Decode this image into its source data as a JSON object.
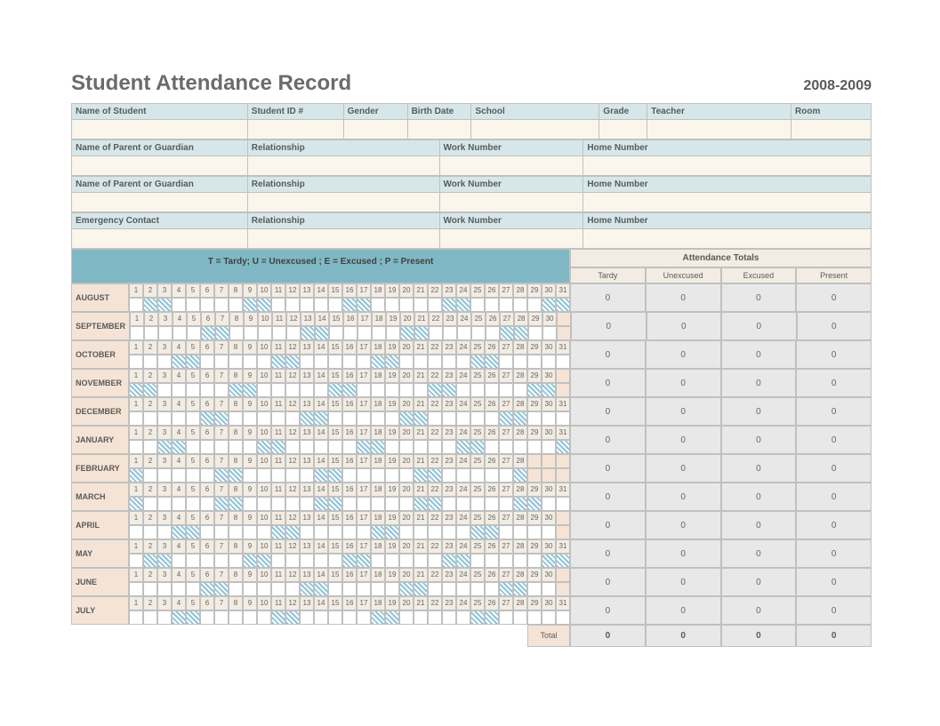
{
  "title": "Student Attendance Record",
  "year": "2008-2009",
  "colors": {
    "header_bg": "#d6e7ea",
    "value_bg": "#faf6ec",
    "legend_bg": "#7fb8c4",
    "month_bg": "#f5e4d6",
    "totals_bg": "#e8e8e8",
    "subheader_bg": "#f2ece2",
    "border": "#c0c0c0",
    "weekend_stripe": "#8fc4d9"
  },
  "info_sections": [
    {
      "headers": [
        "Name of Student",
        "Student ID #",
        "Gender",
        "Birth Date",
        "School",
        "Grade",
        "Teacher",
        "Room"
      ],
      "widths": [
        22,
        12,
        8,
        8,
        16,
        6,
        18,
        10
      ],
      "values": [
        "",
        "",
        "",
        "",
        "",
        "",
        "",
        ""
      ]
    },
    {
      "headers": [
        "Name of Parent or Guardian",
        "Relationship",
        "Work Number",
        "Home Number"
      ],
      "widths": [
        22,
        24,
        18,
        36
      ],
      "values": [
        "",
        "",
        "",
        ""
      ]
    },
    {
      "headers": [
        "Name of Parent or Guardian",
        "Relationship",
        "Work Number",
        "Home Number"
      ],
      "widths": [
        22,
        24,
        18,
        36
      ],
      "values": [
        "",
        "",
        "",
        ""
      ]
    },
    {
      "headers": [
        "Emergency Contact",
        "Relationship",
        "Work Number",
        "Home Number"
      ],
      "widths": [
        22,
        24,
        18,
        36
      ],
      "values": [
        "",
        "",
        "",
        ""
      ]
    }
  ],
  "legend": "T = Tardy; U = Unexcused ; E = Excused ; P = Present",
  "totals_header": "Attendance Totals",
  "totals_columns": [
    "Tardy",
    "Unexcused",
    "Excused",
    "Present"
  ],
  "months": [
    {
      "name": "AUGUST",
      "days": 31,
      "weekends": [
        2,
        3,
        9,
        10,
        16,
        17,
        23,
        24,
        30,
        31
      ],
      "totals": [
        0,
        0,
        0,
        0
      ]
    },
    {
      "name": "SEPTEMBER",
      "days": 30,
      "weekends": [
        6,
        7,
        13,
        14,
        20,
        21,
        27,
        28
      ],
      "totals": [
        0,
        0,
        0,
        0
      ]
    },
    {
      "name": "OCTOBER",
      "days": 31,
      "weekends": [
        4,
        5,
        11,
        12,
        18,
        19,
        25,
        26
      ],
      "totals": [
        0,
        0,
        0,
        0
      ]
    },
    {
      "name": "NOVEMBER",
      "days": 30,
      "weekends": [
        1,
        2,
        8,
        9,
        15,
        16,
        22,
        23,
        29,
        30
      ],
      "totals": [
        0,
        0,
        0,
        0
      ]
    },
    {
      "name": "DECEMBER",
      "days": 31,
      "weekends": [
        6,
        7,
        13,
        14,
        20,
        21,
        27,
        28
      ],
      "totals": [
        0,
        0,
        0,
        0
      ]
    },
    {
      "name": "JANUARY",
      "days": 31,
      "weekends": [
        3,
        4,
        10,
        11,
        17,
        18,
        24,
        25,
        31
      ],
      "totals": [
        0,
        0,
        0,
        0
      ]
    },
    {
      "name": "FEBRUARY",
      "days": 28,
      "weekends": [
        1,
        7,
        8,
        14,
        15,
        21,
        22,
        28
      ],
      "totals": [
        0,
        0,
        0,
        0
      ]
    },
    {
      "name": "MARCH",
      "days": 31,
      "weekends": [
        1,
        7,
        8,
        14,
        15,
        21,
        22,
        28,
        29
      ],
      "totals": [
        0,
        0,
        0,
        0
      ]
    },
    {
      "name": "APRIL",
      "days": 30,
      "weekends": [
        4,
        5,
        11,
        12,
        18,
        19,
        25,
        26
      ],
      "totals": [
        0,
        0,
        0,
        0
      ]
    },
    {
      "name": "MAY",
      "days": 31,
      "weekends": [
        2,
        3,
        9,
        10,
        16,
        17,
        23,
        24,
        30,
        31
      ],
      "totals": [
        0,
        0,
        0,
        0
      ]
    },
    {
      "name": "JUNE",
      "days": 30,
      "weekends": [
        6,
        7,
        13,
        14,
        20,
        21,
        27,
        28
      ],
      "totals": [
        0,
        0,
        0,
        0
      ]
    },
    {
      "name": "JULY",
      "days": 31,
      "weekends": [
        4,
        5,
        11,
        12,
        18,
        19,
        25,
        26
      ],
      "totals": [
        0,
        0,
        0,
        0
      ]
    }
  ],
  "grand_total_label": "Total",
  "grand_totals": [
    0,
    0,
    0,
    0
  ]
}
